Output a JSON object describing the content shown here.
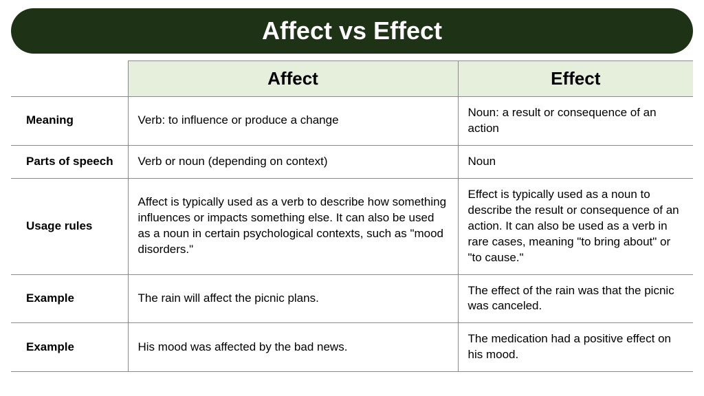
{
  "title": "Affect vs Effect",
  "colors": {
    "banner_bg": "#1e3316",
    "banner_text": "#ffffff",
    "header_bg": "#e6efdb",
    "border": "#8a8a8a",
    "text": "#000000"
  },
  "typography": {
    "title_fontsize": 36,
    "header_fontsize": 26,
    "cell_fontsize": 17
  },
  "columns": {
    "a": "Affect",
    "b": "Effect"
  },
  "rows": [
    {
      "label": "Meaning",
      "a": "Verb: to influence or produce a change",
      "b": "Noun: a result or consequence of an action"
    },
    {
      "label": "Parts of speech",
      "a": "Verb or noun (depending on context)",
      "b": "Noun"
    },
    {
      "label": "Usage rules",
      "a": "Affect is typically used as a verb to describe how something influences or impacts something else. It can also be used as a noun in certain psychological contexts, such as \"mood disorders.\"",
      "b": "Effect is typically used as a noun to describe the result or consequence of an action. It can also be used as a verb in rare cases, meaning \"to bring about\" or \"to cause.\""
    },
    {
      "label": "Example",
      "a": "The rain will affect the picnic plans.",
      "b": "The effect of the rain was that the picnic was canceled."
    },
    {
      "label": "Example",
      "a": "His mood was affected by the bad news.",
      "b": "The medication had a positive effect on his mood."
    }
  ]
}
